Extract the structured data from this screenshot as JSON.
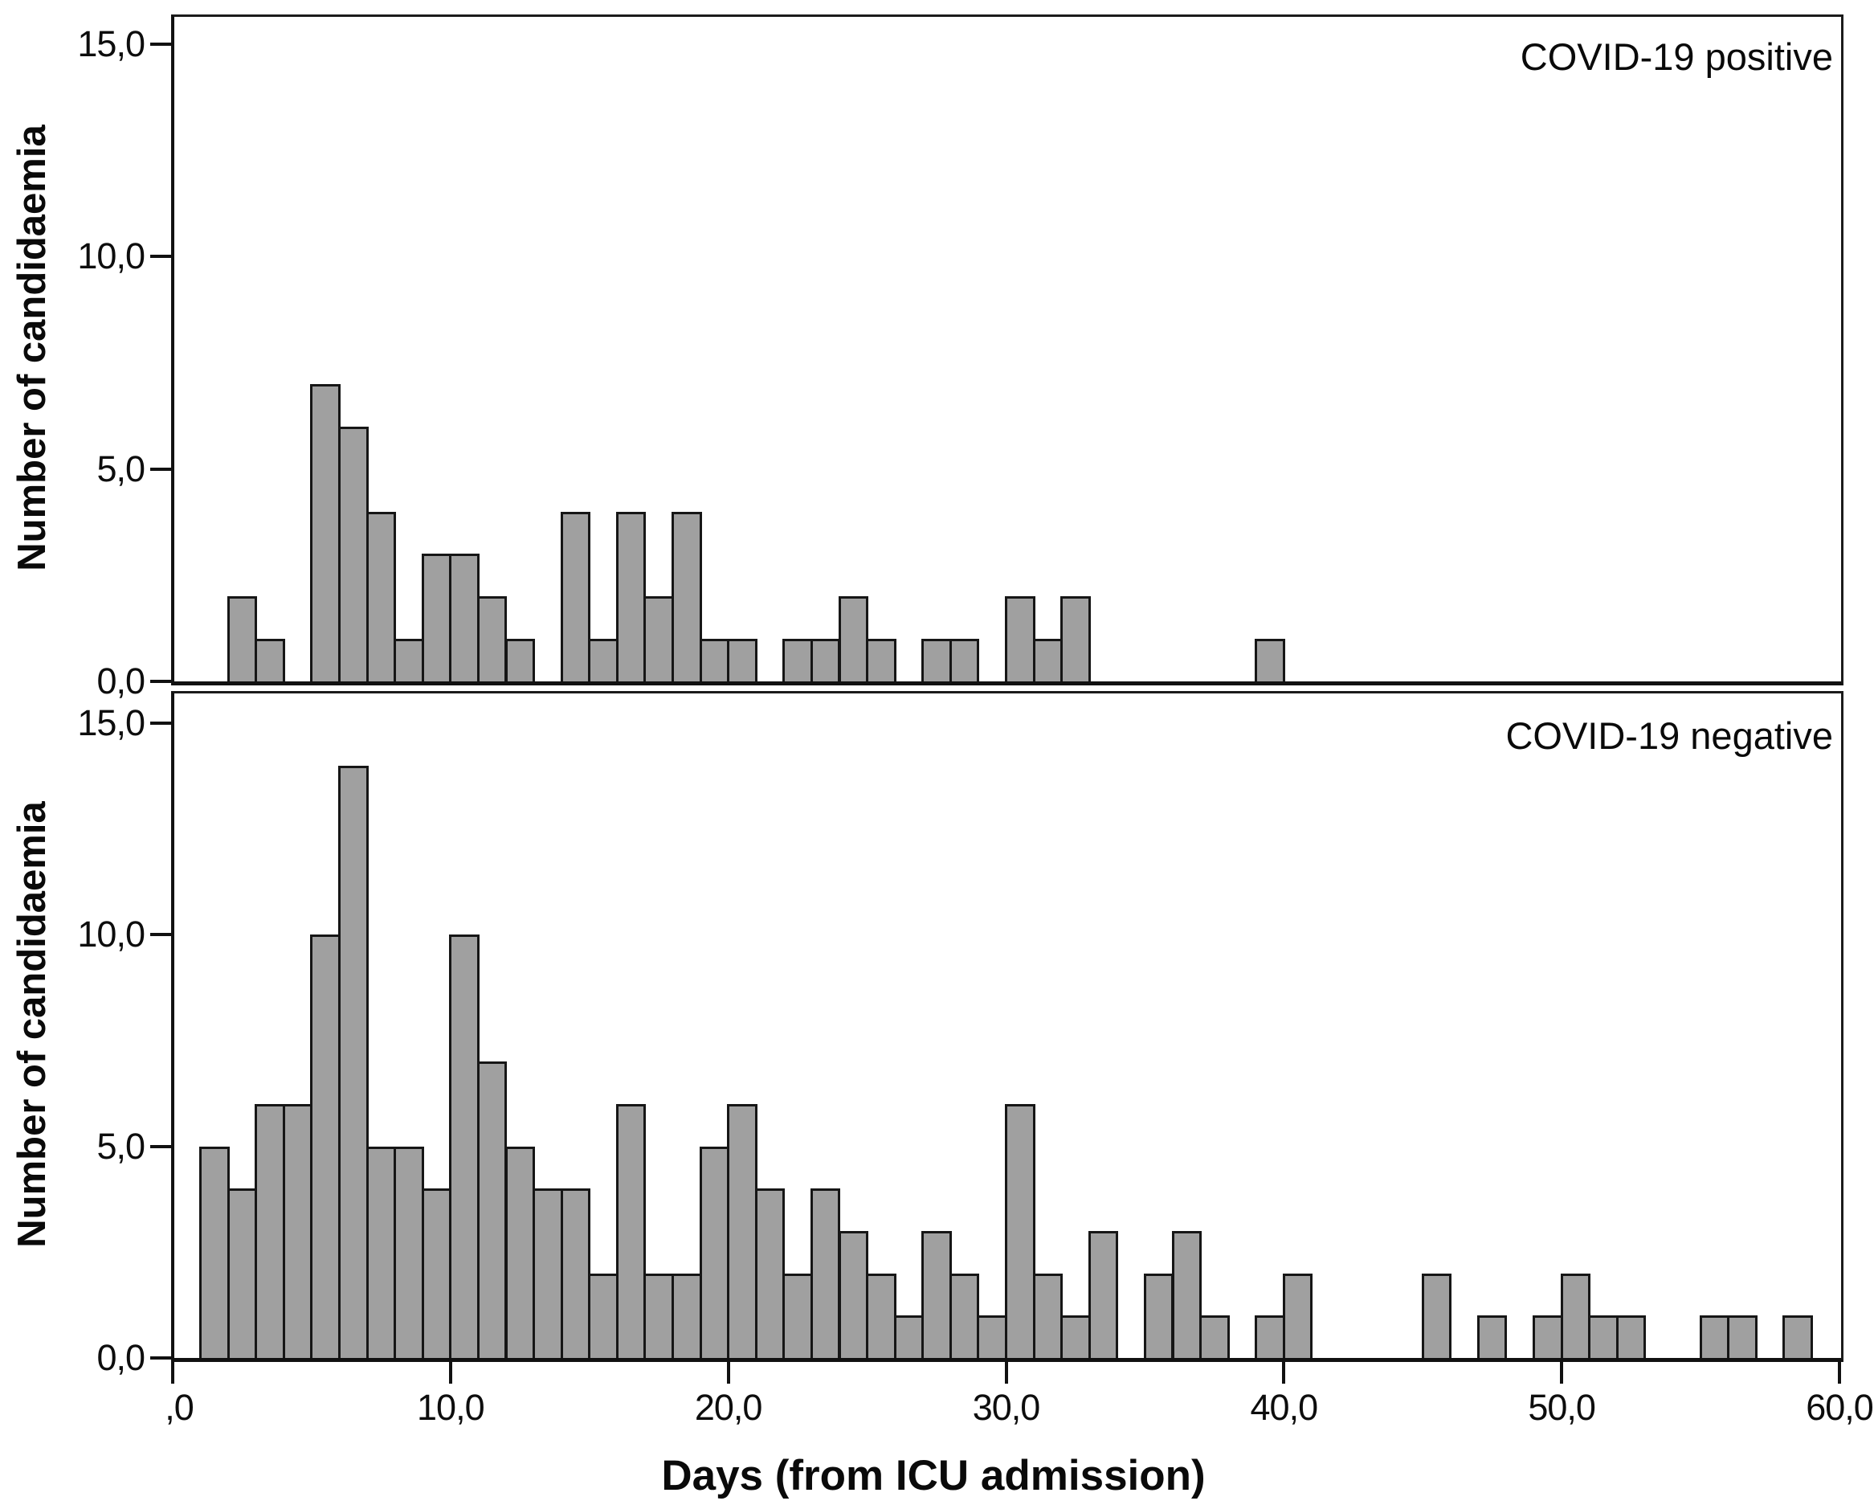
{
  "figure": {
    "background": "#ffffff",
    "bar_fill": "#a0a0a0",
    "bar_stroke": "#161616",
    "axis_color": "#111111",
    "text_color": "#0d0d0d"
  },
  "chart_data": [
    {
      "type": "bar",
      "subtype": "histogram",
      "panel_label": "COVID-19 positive",
      "ylabel": "Number of candidaemia",
      "xlabel": "Days (from ICU admission)",
      "xlim": [
        0,
        60
      ],
      "ylim": [
        0,
        15.7
      ],
      "grid": false,
      "legend": "none",
      "bin_width_days": 1,
      "yticks": [
        {
          "value": 0,
          "label": "0,0"
        },
        {
          "value": 5,
          "label": "5,0"
        },
        {
          "value": 10,
          "label": "10,0"
        },
        {
          "value": 15,
          "label": "15,0"
        }
      ],
      "xticks": [
        {
          "value": 0,
          "label": ",0"
        },
        {
          "value": 10,
          "label": "10,0"
        },
        {
          "value": 20,
          "label": "20,0"
        },
        {
          "value": 30,
          "label": "30,0"
        },
        {
          "value": 40,
          "label": "40,0"
        },
        {
          "value": 50,
          "label": "50,0"
        },
        {
          "value": 60,
          "label": "60,0"
        }
      ],
      "bars": [
        [
          2,
          2
        ],
        [
          3,
          1
        ],
        [
          5,
          7
        ],
        [
          6,
          6
        ],
        [
          7,
          4
        ],
        [
          8,
          1
        ],
        [
          9,
          3
        ],
        [
          10,
          3
        ],
        [
          11,
          2
        ],
        [
          12,
          1
        ],
        [
          14,
          4
        ],
        [
          15,
          1
        ],
        [
          16,
          4
        ],
        [
          17,
          2
        ],
        [
          18,
          4
        ],
        [
          19,
          1
        ],
        [
          20,
          1
        ],
        [
          22,
          1
        ],
        [
          23,
          1
        ],
        [
          24,
          2
        ],
        [
          25,
          1
        ],
        [
          27,
          1
        ],
        [
          28,
          1
        ],
        [
          30,
          2
        ],
        [
          31,
          1
        ],
        [
          32,
          2
        ],
        [
          39,
          1
        ]
      ]
    },
    {
      "type": "bar",
      "subtype": "histogram",
      "panel_label": "COVID-19 negative",
      "ylabel": "Number of candidaemia",
      "xlabel": "Days (from ICU admission)",
      "xlim": [
        0,
        60
      ],
      "ylim": [
        0,
        15.7
      ],
      "grid": false,
      "legend": "none",
      "bin_width_days": 1,
      "yticks": [
        {
          "value": 0,
          "label": "0,0"
        },
        {
          "value": 5,
          "label": "5,0"
        },
        {
          "value": 10,
          "label": "10,0"
        },
        {
          "value": 15,
          "label": "15,0"
        }
      ],
      "xticks": [
        {
          "value": 0,
          "label": ",0"
        },
        {
          "value": 10,
          "label": "10,0"
        },
        {
          "value": 20,
          "label": "20,0"
        },
        {
          "value": 30,
          "label": "30,0"
        },
        {
          "value": 40,
          "label": "40,0"
        },
        {
          "value": 50,
          "label": "50,0"
        },
        {
          "value": 60,
          "label": "60,0"
        }
      ],
      "bars": [
        [
          1,
          5
        ],
        [
          2,
          4
        ],
        [
          3,
          6
        ],
        [
          4,
          6
        ],
        [
          5,
          10
        ],
        [
          6,
          14
        ],
        [
          7,
          5
        ],
        [
          8,
          5
        ],
        [
          9,
          4
        ],
        [
          10,
          10
        ],
        [
          11,
          7
        ],
        [
          12,
          5
        ],
        [
          13,
          4
        ],
        [
          14,
          4
        ],
        [
          15,
          2
        ],
        [
          16,
          6
        ],
        [
          17,
          2
        ],
        [
          18,
          2
        ],
        [
          19,
          5
        ],
        [
          20,
          6
        ],
        [
          21,
          4
        ],
        [
          22,
          2
        ],
        [
          23,
          4
        ],
        [
          24,
          3
        ],
        [
          25,
          2
        ],
        [
          26,
          1
        ],
        [
          27,
          3
        ],
        [
          28,
          2
        ],
        [
          29,
          1
        ],
        [
          30,
          6
        ],
        [
          31,
          2
        ],
        [
          32,
          1
        ],
        [
          33,
          3
        ],
        [
          35,
          2
        ],
        [
          36,
          3
        ],
        [
          37,
          1
        ],
        [
          39,
          1
        ],
        [
          40,
          2
        ],
        [
          45,
          2
        ],
        [
          47,
          1
        ],
        [
          49,
          1
        ],
        [
          50,
          2
        ],
        [
          51,
          1
        ],
        [
          52,
          1
        ],
        [
          55,
          1
        ],
        [
          56,
          1
        ],
        [
          58,
          1
        ]
      ]
    }
  ]
}
